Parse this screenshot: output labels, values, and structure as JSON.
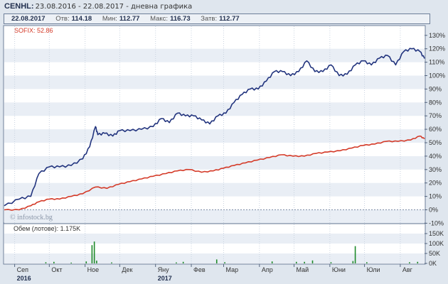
{
  "header": {
    "ticker": "CENHL:",
    "period": "23.08.2016 - 22.08.2017 - дневна графика"
  },
  "infobar": {
    "date": "22.08.2017",
    "open_label": "Отв:",
    "open_value": "114.18",
    "min_label": "Мин:",
    "min_value": "112.77",
    "max_label": "Макс:",
    "max_value": "116.73",
    "close_label": "Затв:",
    "close_value": "112.77"
  },
  "legend": {
    "sofix": "SOFIX: 52.86"
  },
  "watermark": "© infostock.bg",
  "volume_label": "Обем (лотове): 1.175K",
  "colors": {
    "cenhl": "#22347e",
    "sofix": "#d43a28",
    "volume": "#1f8a2a"
  },
  "chart_data": [
    {
      "type": "line",
      "title": "",
      "xlabel": "",
      "ylabel": "",
      "x_ticks": [
        "Сеп",
        "Окт",
        "Ное",
        "Дек",
        "Яну",
        "Фев",
        "Мар",
        "Апр",
        "Май",
        "Юни",
        "Юли",
        "Авг"
      ],
      "year_labels": [
        {
          "month": "Сеп",
          "label": "2016"
        },
        {
          "month": "Яну",
          "label": "2017"
        }
      ],
      "y_ticks": [
        "130%",
        "120%",
        "110%",
        "100%",
        "90%",
        "80%",
        "70%",
        "60%",
        "50%",
        "40%",
        "30%",
        "20%",
        "10%",
        "0%",
        "-10%"
      ],
      "ylim": [
        -10,
        135
      ],
      "grid": "horizontal bands",
      "series": [
        {
          "name": "CENHL",
          "x": [
            "2016-08-23",
            "2016-09-05",
            "2016-09-15",
            "2016-09-22",
            "2016-10-01",
            "2016-10-10",
            "2016-10-20",
            "2016-10-30",
            "2016-11-05",
            "2016-11-10",
            "2016-11-12",
            "2016-11-18",
            "2016-11-25",
            "2016-12-01",
            "2016-12-10",
            "2016-12-20",
            "2016-12-30",
            "2017-01-06",
            "2017-01-13",
            "2017-01-20",
            "2017-01-27",
            "2017-02-03",
            "2017-02-10",
            "2017-02-17",
            "2017-02-24",
            "2017-03-03",
            "2017-03-10",
            "2017-03-17",
            "2017-03-24",
            "2017-03-31",
            "2017-04-07",
            "2017-04-14",
            "2017-04-21",
            "2017-04-28",
            "2017-05-05",
            "2017-05-12",
            "2017-05-19",
            "2017-05-26",
            "2017-06-02",
            "2017-06-09",
            "2017-06-16",
            "2017-06-23",
            "2017-06-30",
            "2017-07-07",
            "2017-07-14",
            "2017-07-21",
            "2017-07-28",
            "2017-08-04",
            "2017-08-11",
            "2017-08-18",
            "2017-08-22"
          ],
          "y": [
            3,
            8,
            10,
            27,
            32,
            32,
            33,
            38,
            47,
            62,
            56,
            57,
            55,
            59,
            59,
            60,
            62,
            68,
            65,
            72,
            70,
            70,
            67,
            64,
            70,
            72,
            80,
            86,
            90,
            90,
            96,
            103,
            103,
            100,
            103,
            111,
            103,
            103,
            108,
            100,
            101,
            108,
            111,
            108,
            113,
            115,
            108,
            118,
            120,
            118,
            112.77
          ]
        },
        {
          "name": "SOFIX",
          "x": [
            "2016-08-23",
            "2016-09-05",
            "2016-09-15",
            "2016-09-22",
            "2016-10-01",
            "2016-10-10",
            "2016-10-20",
            "2016-10-30",
            "2016-11-10",
            "2016-11-20",
            "2016-11-30",
            "2016-12-10",
            "2016-12-20",
            "2016-12-30",
            "2017-01-10",
            "2017-01-20",
            "2017-01-30",
            "2017-02-10",
            "2017-02-20",
            "2017-03-01",
            "2017-03-10",
            "2017-03-20",
            "2017-03-30",
            "2017-04-10",
            "2017-04-20",
            "2017-04-30",
            "2017-05-10",
            "2017-05-20",
            "2017-05-30",
            "2017-06-10",
            "2017-06-20",
            "2017-06-30",
            "2017-07-10",
            "2017-07-20",
            "2017-07-30",
            "2017-08-10",
            "2017-08-18",
            "2017-08-22"
          ],
          "y": [
            0,
            0,
            3,
            6,
            8,
            8,
            10,
            12,
            17,
            16,
            19,
            21,
            23,
            25,
            27,
            29,
            30,
            28,
            29,
            31,
            33,
            35,
            37,
            39,
            41,
            40,
            40,
            42,
            43,
            44,
            46,
            48,
            49,
            51,
            51,
            52,
            55,
            52.86
          ]
        }
      ]
    },
    {
      "type": "bar",
      "title": "Обем (лотове): 1.175K",
      "y_ticks": [
        "150K",
        "100K",
        "50K",
        "0K"
      ],
      "ylim": [
        0,
        160
      ],
      "x": [
        "2016-09-28",
        "2016-10-05",
        "2016-10-20",
        "2016-11-02",
        "2016-11-07",
        "2016-11-09",
        "2016-11-11",
        "2016-11-24",
        "2017-01-19",
        "2017-01-25",
        "2017-02-23",
        "2017-03-02",
        "2017-04-12",
        "2017-05-03",
        "2017-05-10",
        "2017-05-17",
        "2017-06-02",
        "2017-06-21",
        "2017-06-23",
        "2017-07-03",
        "2017-08-09",
        "2017-08-16"
      ],
      "values": [
        6,
        8,
        4,
        10,
        92,
        110,
        14,
        5,
        5,
        8,
        20,
        6,
        10,
        8,
        8,
        15,
        6,
        12,
        87,
        6,
        6,
        8
      ]
    }
  ]
}
